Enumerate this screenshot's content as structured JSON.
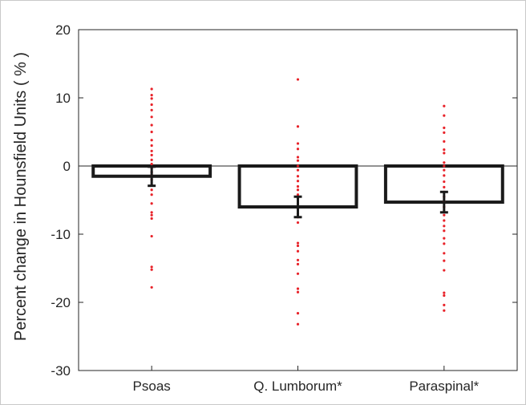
{
  "chart_data": {
    "type": "bar",
    "title": "",
    "xlabel": "",
    "ylabel": "Percent change in Hounsfield Units ( % )",
    "ylim": [
      -30,
      20
    ],
    "yticks": [
      20,
      10,
      0,
      -10,
      -20,
      -30
    ],
    "ytick_labels": [
      "20",
      "10",
      "0",
      "-10",
      "-20",
      "-30"
    ],
    "grid": false,
    "categories": [
      "Psoas",
      "Q. Lumborum*",
      "Paraspinal*"
    ],
    "values": [
      -1.5,
      -6.0,
      -5.3
    ],
    "error_low": [
      -2.9,
      -7.5,
      -6.8
    ],
    "error_high": [
      -0.1,
      -4.5,
      -3.8
    ],
    "points": [
      [
        11.3,
        10.4,
        9.9,
        9.0,
        8.2,
        7.2,
        6.0,
        5.0,
        3.8,
        3.0,
        2.2,
        1.6,
        0.9,
        0.3,
        -0.3,
        -0.9,
        -1.3,
        -2.0,
        -2.8,
        -3.5,
        -4.2,
        -5.5,
        -6.8,
        -7.2,
        -7.7,
        -10.3,
        -14.8,
        -15.2,
        -17.8
      ],
      [
        12.7,
        5.8,
        3.3,
        2.5,
        1.3,
        0.8,
        0.0,
        -0.6,
        -1.5,
        -2.2,
        -3.0,
        -3.5,
        -4.2,
        -4.8,
        -5.6,
        -6.3,
        -7.0,
        -7.5,
        -8.3,
        -11.3,
        -11.7,
        -12.5,
        -13.8,
        -14.4,
        -15.8,
        -18.0,
        -18.5,
        -21.6,
        -23.2
      ],
      [
        8.8,
        7.4,
        5.6,
        4.9,
        3.6,
        2.4,
        1.9,
        0.5,
        0.0,
        -0.6,
        -1.4,
        -2.3,
        -3.1,
        -3.8,
        -4.5,
        -5.2,
        -6.0,
        -7.2,
        -8.0,
        -8.8,
        -9.5,
        -10.6,
        -11.4,
        -12.8,
        -13.9,
        -15.3,
        -18.6,
        -19.0,
        -20.4,
        -21.2
      ]
    ],
    "colors": {
      "bar_edge": "#1a1a1a",
      "bar_fill": "#ffffff",
      "points": "#e8232a",
      "errorbar": "#1a1a1a",
      "axis": "#262626"
    }
  }
}
